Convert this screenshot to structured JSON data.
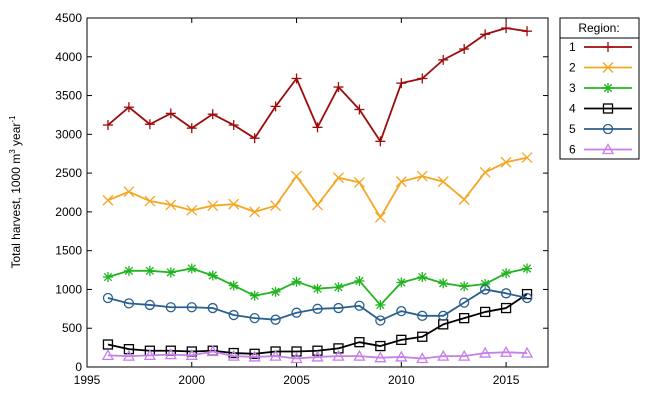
{
  "chart_data": {
    "type": "line",
    "ylabel": "Total harvest, 1000 m",
    "ylabel_sup": "3",
    "ylabel_tail": " year",
    "ylabel_sup2": "-1",
    "xlim": [
      1995,
      2017
    ],
    "ylim": [
      0,
      4500
    ],
    "xticks": [
      1995,
      2000,
      2005,
      2010,
      2015
    ],
    "yticks": [
      0,
      500,
      1000,
      1500,
      2000,
      2500,
      3000,
      3500,
      4000,
      4500
    ],
    "legend_title": "Region:",
    "legend_position": "right-outside",
    "grid": false,
    "x": [
      1996,
      1997,
      1998,
      1999,
      2000,
      2001,
      2002,
      2003,
      2004,
      2005,
      2006,
      2007,
      2008,
      2009,
      2010,
      2011,
      2012,
      2013,
      2014,
      2015,
      2016
    ],
    "series": [
      {
        "name": "1",
        "color": "#9e0b0b",
        "marker": "plus",
        "values": [
          3120,
          3350,
          3130,
          3270,
          3080,
          3260,
          3120,
          2950,
          3360,
          3720,
          3090,
          3610,
          3320,
          2910,
          3660,
          3720,
          3960,
          4100,
          4290,
          4370,
          4330
        ]
      },
      {
        "name": "2",
        "color": "#f5a623",
        "marker": "cross",
        "values": [
          2150,
          2260,
          2140,
          2090,
          2020,
          2080,
          2100,
          2000,
          2080,
          2460,
          2090,
          2440,
          2380,
          1930,
          2390,
          2460,
          2390,
          2160,
          2510,
          2640,
          2700
        ]
      },
      {
        "name": "3",
        "color": "#21b521",
        "marker": "star",
        "values": [
          1160,
          1240,
          1240,
          1220,
          1270,
          1180,
          1050,
          920,
          970,
          1100,
          1010,
          1030,
          1110,
          800,
          1090,
          1160,
          1080,
          1040,
          1070,
          1210,
          1270
        ]
      },
      {
        "name": "4",
        "color": "#000000",
        "marker": "square",
        "values": [
          290,
          230,
          210,
          210,
          200,
          210,
          180,
          170,
          200,
          200,
          210,
          240,
          320,
          270,
          350,
          390,
          550,
          630,
          710,
          760,
          940
        ]
      },
      {
        "name": "5",
        "color": "#2a5f8f",
        "marker": "circle",
        "values": [
          890,
          820,
          800,
          770,
          770,
          760,
          670,
          630,
          610,
          700,
          750,
          760,
          790,
          600,
          720,
          660,
          660,
          830,
          1000,
          950,
          890
        ]
      },
      {
        "name": "6",
        "color": "#c77dea",
        "marker": "triangle",
        "values": [
          150,
          140,
          150,
          160,
          150,
          200,
          140,
          130,
          140,
          110,
          130,
          140,
          140,
          120,
          130,
          110,
          140,
          140,
          180,
          190,
          180
        ]
      }
    ]
  }
}
